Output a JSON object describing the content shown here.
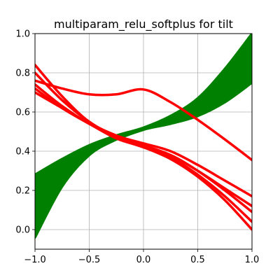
{
  "chart_data": {
    "type": "line",
    "title": "multiparam_relu_softplus for tilt",
    "xlabel": "",
    "ylabel": "",
    "xlim": [
      -1.0,
      1.0
    ],
    "ylim": [
      -0.1,
      1.0
    ],
    "x_ticks": [
      {
        "value": -1.0,
        "label": "−1.0"
      },
      {
        "value": -0.5,
        "label": "−0.5"
      },
      {
        "value": 0.0,
        "label": "0.0"
      },
      {
        "value": 0.5,
        "label": "0.5"
      },
      {
        "value": 1.0,
        "label": "1.0"
      }
    ],
    "y_ticks": [
      {
        "value": 0.0,
        "label": "0.0"
      },
      {
        "value": 0.2,
        "label": "0.2"
      },
      {
        "value": 0.4,
        "label": "0.4"
      },
      {
        "value": 0.6,
        "label": "0.6"
      },
      {
        "value": 0.8,
        "label": "0.8"
      },
      {
        "value": 1.0,
        "label": "1.0"
      }
    ],
    "grid": true,
    "colors": {
      "red": "#ff0000",
      "green": "#008000",
      "grid": "#b0b0b0"
    },
    "red_curves": [
      {
        "x": [
          -1.0,
          -0.75,
          -0.5,
          -0.25,
          0.0,
          0.25,
          0.5,
          0.75,
          1.0
        ],
        "y": [
          0.76,
          0.72,
          0.69,
          0.69,
          0.715,
          0.65,
          0.56,
          0.46,
          0.355
        ]
      },
      {
        "x": [
          -1.0,
          -0.75,
          -0.5,
          -0.25,
          0.0,
          0.25,
          0.5,
          0.75,
          1.0
        ],
        "y": [
          0.84,
          0.68,
          0.55,
          0.48,
          0.44,
          0.4,
          0.33,
          0.25,
          0.17
        ]
      },
      {
        "x": [
          -1.0,
          -0.75,
          -0.5,
          -0.25,
          0.0,
          0.25,
          0.5,
          0.75,
          1.0
        ],
        "y": [
          0.8,
          0.66,
          0.55,
          0.47,
          0.43,
          0.38,
          0.3,
          0.21,
          0.12
        ]
      },
      {
        "x": [
          -1.0,
          -0.75,
          -0.5,
          -0.25,
          0.0,
          0.25,
          0.5,
          0.75,
          1.0
        ],
        "y": [
          0.74,
          0.63,
          0.54,
          0.47,
          0.425,
          0.37,
          0.28,
          0.17,
          0.04
        ]
      },
      {
        "x": [
          -1.0,
          -0.75,
          -0.5,
          -0.25,
          0.0,
          0.25,
          0.5,
          0.75,
          1.0
        ],
        "y": [
          0.72,
          0.62,
          0.54,
          0.465,
          0.42,
          0.36,
          0.27,
          0.15,
          0.0
        ]
      },
      {
        "x": [
          -1.0,
          -0.75,
          -0.5,
          -0.25,
          0.0,
          0.25,
          0.5,
          0.75,
          1.0
        ],
        "y": [
          0.7,
          0.62,
          0.54,
          0.47,
          0.42,
          0.38,
          0.3,
          0.2,
          0.09
        ]
      }
    ],
    "green_band": {
      "x": [
        -1.0,
        -0.75,
        -0.5,
        -0.25,
        0.0,
        0.25,
        0.5,
        0.75,
        1.0
      ],
      "upper": [
        0.28,
        0.36,
        0.43,
        0.48,
        0.52,
        0.58,
        0.67,
        0.82,
        1.0
      ],
      "lower": [
        -0.04,
        0.22,
        0.38,
        0.46,
        0.51,
        0.54,
        0.58,
        0.65,
        0.75
      ]
    },
    "green_curves": [
      {
        "x": [
          -1.0,
          -0.75,
          -0.5,
          -0.25,
          0.0,
          0.25,
          0.5,
          0.75,
          1.0
        ],
        "y": [
          0.28,
          0.36,
          0.43,
          0.48,
          0.52,
          0.58,
          0.67,
          0.82,
          1.0
        ]
      },
      {
        "x": [
          -1.0,
          -0.75,
          -0.5,
          -0.25,
          0.0,
          0.25,
          0.5,
          0.75,
          1.0
        ],
        "y": [
          0.2,
          0.32,
          0.41,
          0.47,
          0.515,
          0.57,
          0.65,
          0.78,
          0.94
        ]
      },
      {
        "x": [
          -1.0,
          -0.75,
          -0.5,
          -0.25,
          0.0,
          0.25,
          0.5,
          0.75,
          1.0
        ],
        "y": [
          0.12,
          0.29,
          0.4,
          0.465,
          0.51,
          0.56,
          0.63,
          0.74,
          0.88
        ]
      },
      {
        "x": [
          -1.0,
          -0.75,
          -0.5,
          -0.25,
          0.0,
          0.25,
          0.5,
          0.75,
          1.0
        ],
        "y": [
          0.05,
          0.26,
          0.39,
          0.46,
          0.51,
          0.55,
          0.61,
          0.71,
          0.82
        ]
      },
      {
        "x": [
          -1.0,
          -0.75,
          -0.5,
          -0.25,
          0.0,
          0.25,
          0.5,
          0.75,
          1.0
        ],
        "y": [
          -0.04,
          0.22,
          0.38,
          0.46,
          0.51,
          0.54,
          0.58,
          0.65,
          0.75
        ]
      }
    ]
  }
}
